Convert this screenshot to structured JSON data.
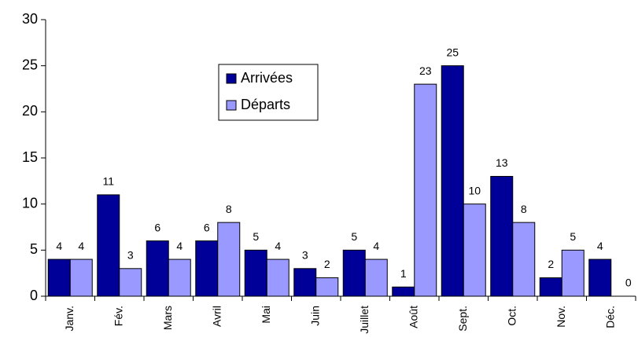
{
  "chart_data": {
    "type": "bar",
    "categories": [
      "Janv.",
      "Fév.",
      "Mars",
      "Avril",
      "Mai",
      "Juin",
      "Juillet",
      "Août",
      "Sept.",
      "Oct.",
      "Nov.",
      "Déc."
    ],
    "series": [
      {
        "name": "Arrivées",
        "color": "#000099",
        "values": [
          4,
          11,
          6,
          6,
          5,
          3,
          5,
          1,
          25,
          13,
          2,
          4
        ]
      },
      {
        "name": "Départs",
        "color": "#9999ff",
        "values": [
          4,
          3,
          4,
          8,
          4,
          2,
          4,
          23,
          10,
          8,
          5,
          0
        ]
      }
    ],
    "ylim": [
      0,
      30
    ],
    "yticks": [
      0,
      5,
      10,
      15,
      20,
      25,
      30
    ],
    "grid": false,
    "legend": "top"
  }
}
